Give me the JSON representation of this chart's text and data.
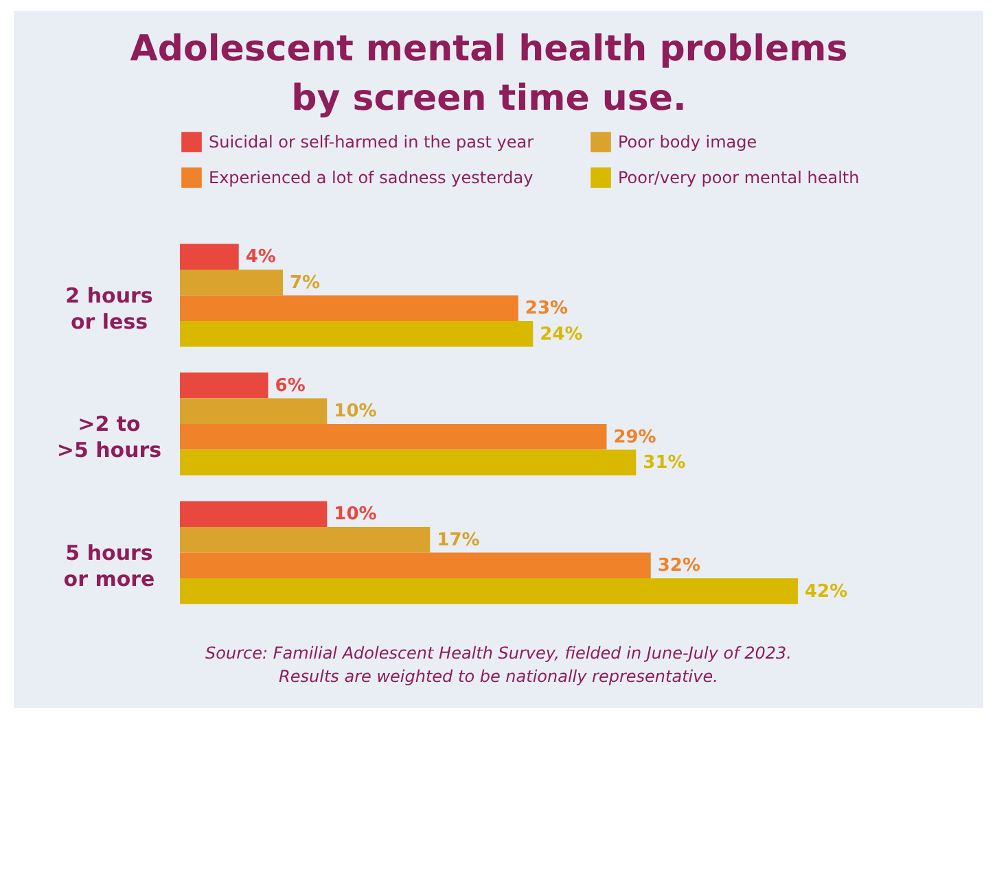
{
  "chart_data": {
    "type": "bar",
    "orientation": "horizontal",
    "title": "Adolescent mental health problems by screen time use.",
    "categories": [
      "2 hours or less",
      ">2 to >5 hours",
      "5 hours or more"
    ],
    "series": [
      {
        "name": "Suicidal or self-harmed in the past year",
        "color": "#e9483f",
        "values": [
          4,
          6,
          10
        ],
        "value_labels": [
          "4%",
          "6%",
          "10%"
        ]
      },
      {
        "name": "Poor body image",
        "color": "#d9a32e",
        "values": [
          7,
          10,
          17
        ],
        "value_labels": [
          "7%",
          "10%",
          "17%"
        ]
      },
      {
        "name": "Experienced a lot of sadness yesterday",
        "color": "#f08229",
        "values": [
          23,
          29,
          32
        ],
        "value_labels": [
          "23%",
          "29%",
          "32%"
        ]
      },
      {
        "name": "Poor/very poor mental health",
        "color": "#d8b900",
        "values": [
          24,
          31,
          42
        ],
        "value_labels": [
          "24%",
          "31%",
          "42%"
        ]
      }
    ],
    "legend": "top",
    "annotations": [
      "Source: Familial Adolescent Health Survey, fielded in June-July of 2023.",
      "Results are weighted to be nationally representative."
    ]
  }
}
